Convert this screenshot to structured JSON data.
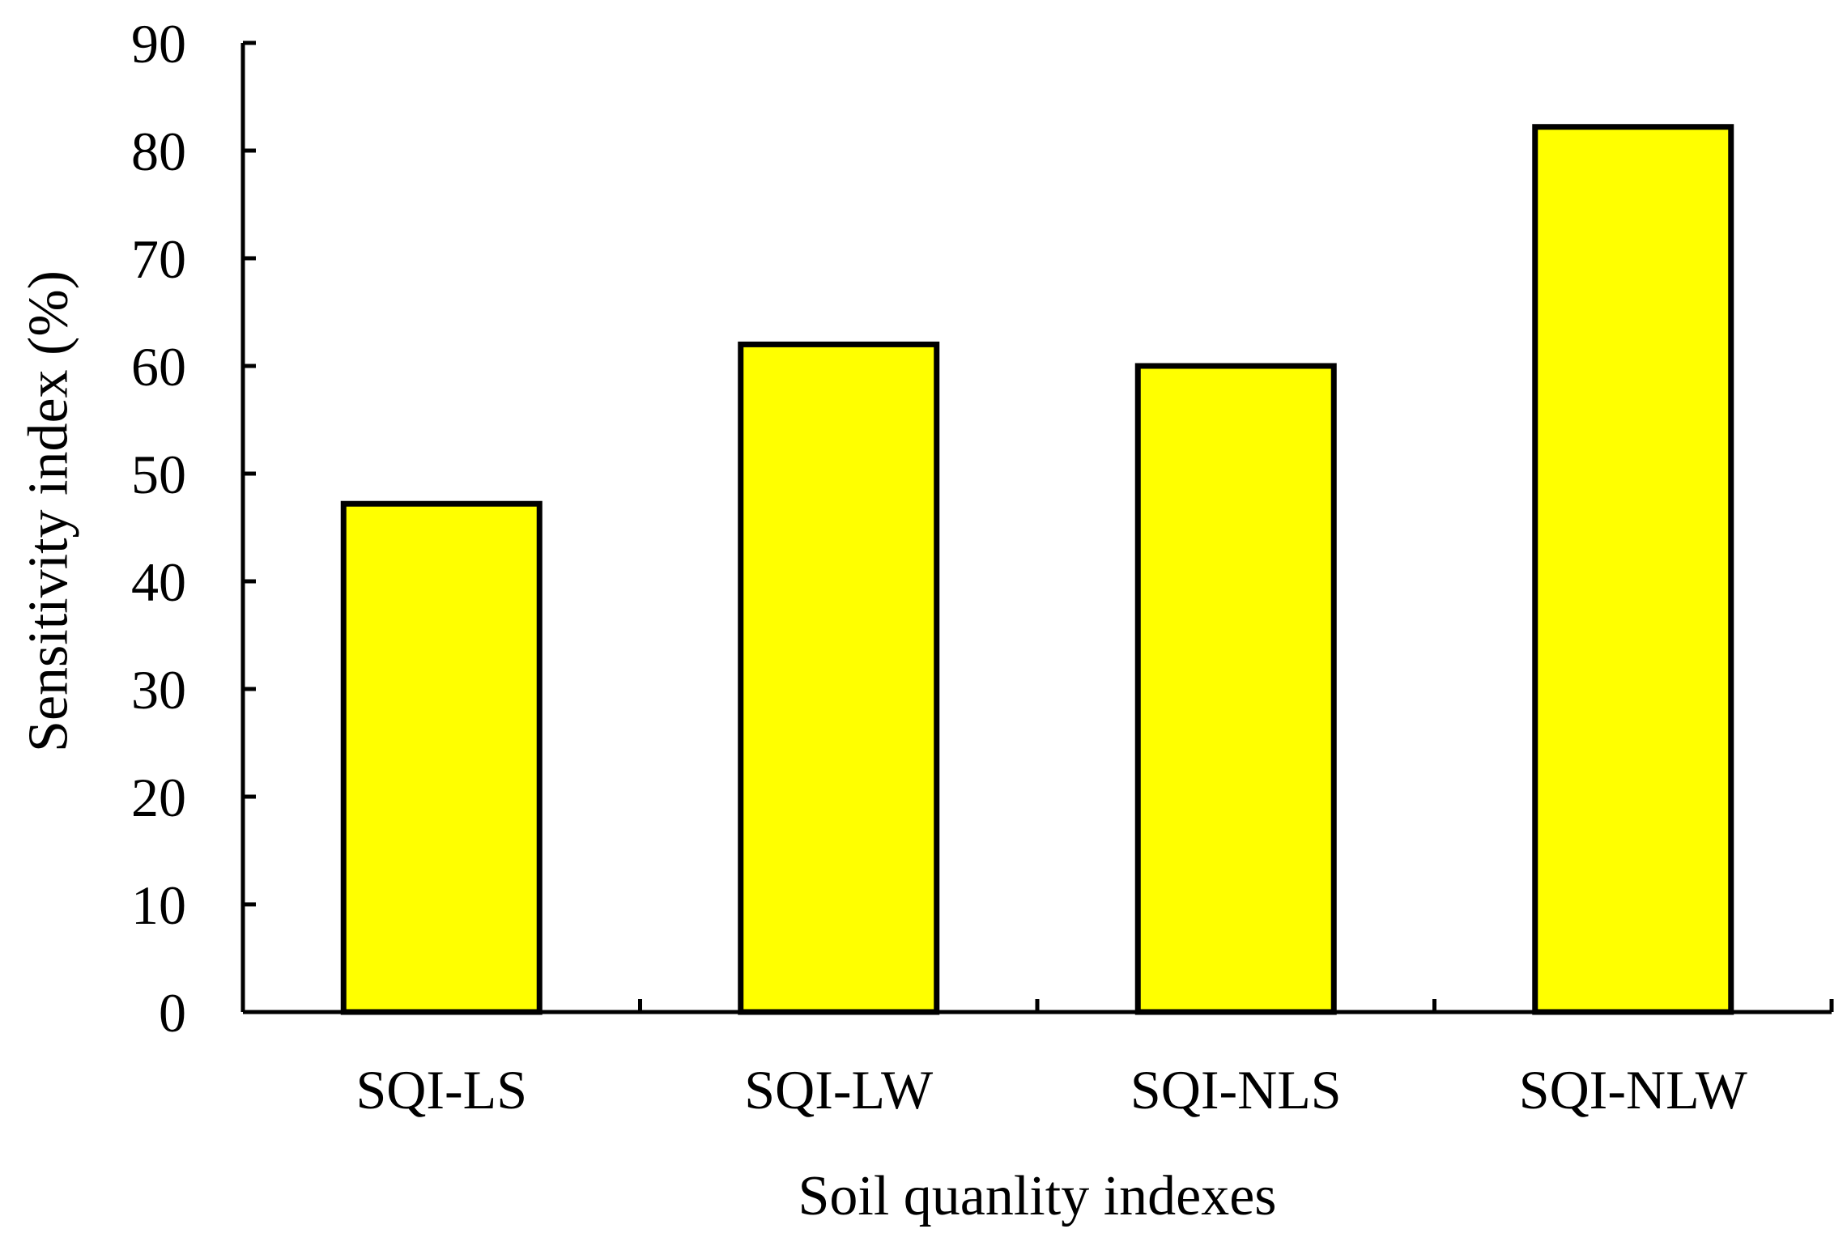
{
  "chart_data": {
    "type": "bar",
    "title": "",
    "xlabel": "Soil quanlity indexes",
    "ylabel": "Sensitivity index (%)",
    "categories": [
      "SQI-LS",
      "SQI-LW",
      "SQI-NLS",
      "SQI-NLW"
    ],
    "series": [
      {
        "values": [
          47.2,
          62.0,
          60.0,
          82.2
        ]
      }
    ],
    "ylim": [
      0,
      90
    ],
    "yticks": [
      0,
      10,
      20,
      30,
      40,
      50,
      60,
      70,
      80,
      90
    ],
    "ytick_labels": [
      "0",
      "10",
      "20",
      "30",
      "40",
      "50",
      "60",
      "70",
      "80",
      "90"
    ],
    "grid": false,
    "legend": "none",
    "colors": {
      "bar_fill": "#FFFF00",
      "bar_stroke": "#000000",
      "axis": "#000000"
    }
  }
}
